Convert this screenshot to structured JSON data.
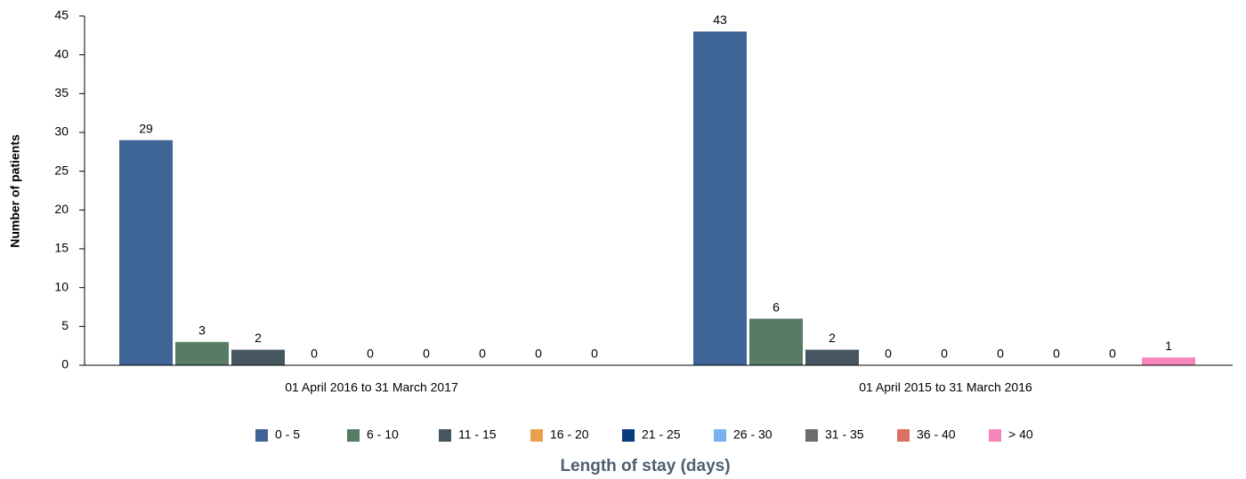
{
  "chart_data": {
    "type": "bar",
    "y_label": "Number of patients",
    "x_label": "Length of stay (days)",
    "categories": [
      "01 April 2016 to 31 March 2017",
      "01 April 2015 to 31 March 2016"
    ],
    "series": [
      {
        "name": "0 - 5",
        "color": "#3e6596",
        "values": [
          29,
          43
        ]
      },
      {
        "name": "6 - 10",
        "color": "#577c63",
        "values": [
          3,
          6
        ]
      },
      {
        "name": "11 - 15",
        "color": "#455660",
        "values": [
          2,
          2
        ]
      },
      {
        "name": "16 - 20",
        "color": "#e8a04b",
        "values": [
          0,
          0
        ]
      },
      {
        "name": "21 - 25",
        "color": "#0b3c7d",
        "values": [
          0,
          0
        ]
      },
      {
        "name": "26 - 30",
        "color": "#79b1f0",
        "values": [
          0,
          0
        ]
      },
      {
        "name": "31 - 35",
        "color": "#6c6c6c",
        "values": [
          0,
          0
        ]
      },
      {
        "name": "36 - 40",
        "color": "#dc7063",
        "values": [
          0,
          0
        ]
      },
      {
        "name": "> 40",
        "color": "#f686b9",
        "values": [
          0,
          1
        ]
      }
    ],
    "ylim": [
      0,
      45
    ],
    "yticks": [
      0,
      5,
      10,
      15,
      20,
      25,
      30,
      35,
      40,
      45
    ],
    "grid": false,
    "legend": "bottom"
  }
}
